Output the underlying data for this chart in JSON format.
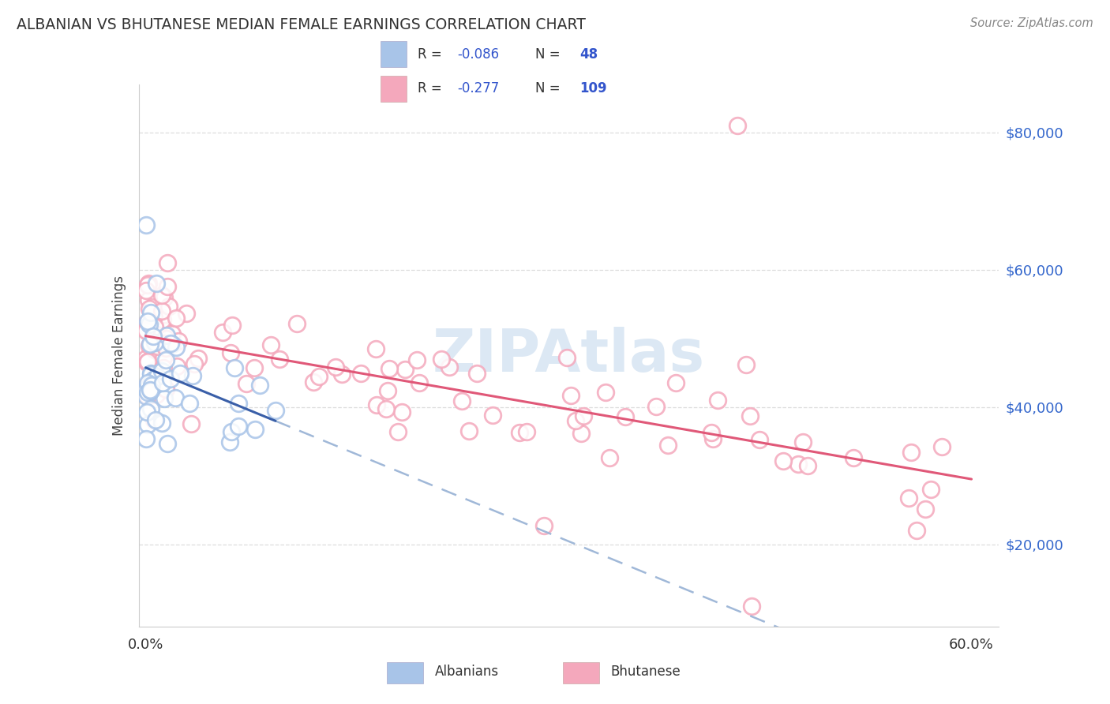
{
  "title": "ALBANIAN VS BHUTANESE MEDIAN FEMALE EARNINGS CORRELATION CHART",
  "source": "Source: ZipAtlas.com",
  "ylabel": "Median Female Earnings",
  "xlim": [
    -0.005,
    0.62
  ],
  "ylim": [
    8000,
    87000
  ],
  "yticks": [
    20000,
    40000,
    60000,
    80000
  ],
  "ytick_labels": [
    "$20,000",
    "$40,000",
    "$60,000",
    "$80,000"
  ],
  "xticks": [
    0.0,
    0.6
  ],
  "xtick_labels": [
    "0.0%",
    "60.0%"
  ],
  "legend_r_albanian": "-0.086",
  "legend_n_albanian": "48",
  "legend_r_bhutanese": "-0.277",
  "legend_n_bhutanese": "109",
  "albanian_color": "#a8c4e8",
  "bhutanese_color": "#f4a8bc",
  "albanian_line_color": "#3a5fa8",
  "bhutanese_line_color": "#e05878",
  "dashed_line_color": "#a0b8d8",
  "background_color": "#ffffff",
  "watermark": "ZIPAtlas",
  "watermark_color": "#dce8f4",
  "title_color": "#333333",
  "source_color": "#888888",
  "axis_label_color": "#444444",
  "ytick_color": "#3366cc",
  "xtick_color": "#333333",
  "grid_color": "#dddddd",
  "spine_color": "#cccccc",
  "legend_facecolor": "#f0f4ff",
  "legend_edgecolor": "#bbbbcc"
}
